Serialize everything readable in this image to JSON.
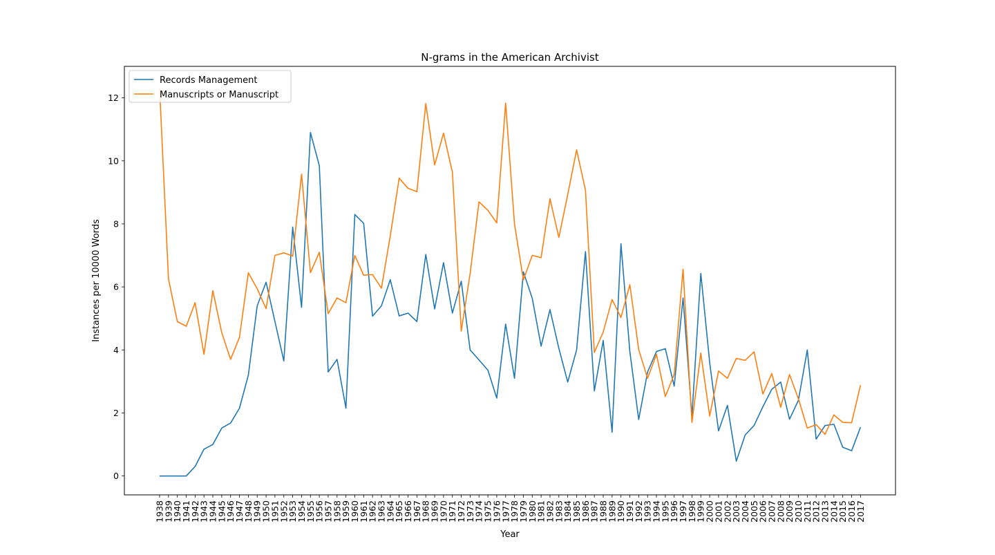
{
  "chart_data": {
    "type": "line",
    "title": "N-grams in the American Archivist",
    "xlabel": "Year",
    "ylabel": "Instances per 10000 Words",
    "ylim": [
      -0.6,
      13.0
    ],
    "yticks": [
      0,
      2,
      4,
      6,
      8,
      10,
      12
    ],
    "grid": false,
    "legend_position": "top-left",
    "categories": [
      "1938",
      "1939",
      "1940",
      "1941",
      "1942",
      "1943",
      "1944",
      "1945",
      "1946",
      "1947",
      "1948",
      "1949",
      "1950",
      "1951",
      "1952",
      "1953",
      "1954",
      "1955",
      "1956",
      "1957",
      "1958",
      "1959",
      "1960",
      "1961",
      "1962",
      "1963",
      "1964",
      "1965",
      "1966",
      "1967",
      "1968",
      "1969",
      "1970",
      "1971",
      "1972",
      "1973",
      "1974",
      "1975",
      "1976",
      "1977",
      "1978",
      "1979",
      "1980",
      "1981",
      "1982",
      "1983",
      "1984",
      "1985",
      "1986",
      "1987",
      "1988",
      "1989",
      "1990",
      "1991",
      "1992",
      "1993",
      "1994",
      "1995",
      "1996",
      "1997",
      "1998",
      "1999",
      "2000",
      "2001",
      "2002",
      "2003",
      "2004",
      "2005",
      "2006",
      "2007",
      "2008",
      "2009",
      "2010",
      "2011",
      "2012",
      "2013",
      "2014",
      "2015",
      "2016",
      "2017"
    ],
    "series": [
      {
        "name": "Records Management",
        "color": "#1f77b4",
        "values": [
          0,
          0,
          0,
          0,
          0.3,
          0.85,
          1.0,
          1.52,
          1.68,
          2.15,
          3.2,
          5.4,
          6.15,
          4.9,
          3.65,
          7.9,
          5.35,
          10.9,
          9.85,
          3.3,
          3.7,
          2.15,
          8.3,
          8.02,
          5.07,
          5.4,
          6.23,
          5.08,
          5.17,
          4.9,
          7.03,
          5.3,
          6.77,
          5.17,
          6.18,
          4.0,
          3.68,
          3.36,
          2.47,
          4.82,
          3.1,
          6.48,
          5.64,
          4.12,
          5.28,
          4.05,
          2.98,
          4.0,
          7.12,
          2.7,
          4.3,
          1.39,
          7.37,
          3.95,
          1.79,
          3.3,
          3.95,
          4.04,
          2.85,
          5.65,
          1.9,
          6.43,
          3.6,
          1.43,
          2.24,
          0.47,
          1.3,
          1.6,
          2.2,
          2.75,
          2.98,
          1.8,
          2.4,
          4.0,
          1.17,
          1.6,
          1.64,
          0.91,
          0.8,
          1.55
        ]
      },
      {
        "name": "Manuscripts or Manuscript",
        "color": "#ff7f0e",
        "values": [
          12.3,
          6.25,
          4.9,
          4.75,
          5.5,
          3.86,
          5.88,
          4.55,
          3.7,
          4.4,
          6.45,
          5.94,
          5.31,
          7.0,
          7.08,
          6.98,
          9.58,
          6.45,
          7.1,
          5.15,
          5.65,
          5.5,
          7.0,
          6.37,
          6.39,
          5.96,
          7.62,
          9.45,
          9.13,
          9.02,
          11.82,
          9.87,
          10.88,
          9.64,
          4.6,
          6.43,
          8.7,
          8.43,
          8.03,
          11.83,
          8.0,
          6.22,
          7.0,
          6.93,
          8.8,
          7.57,
          8.93,
          10.35,
          9.07,
          3.92,
          4.57,
          5.6,
          5.03,
          6.07,
          4.01,
          3.1,
          3.86,
          2.52,
          3.22,
          6.56,
          1.7,
          3.9,
          1.9,
          3.33,
          3.1,
          3.73,
          3.67,
          3.94,
          2.6,
          3.25,
          2.18,
          3.22,
          2.45,
          1.52,
          1.63,
          1.32,
          1.94,
          1.7,
          1.69,
          2.88
        ]
      }
    ]
  }
}
